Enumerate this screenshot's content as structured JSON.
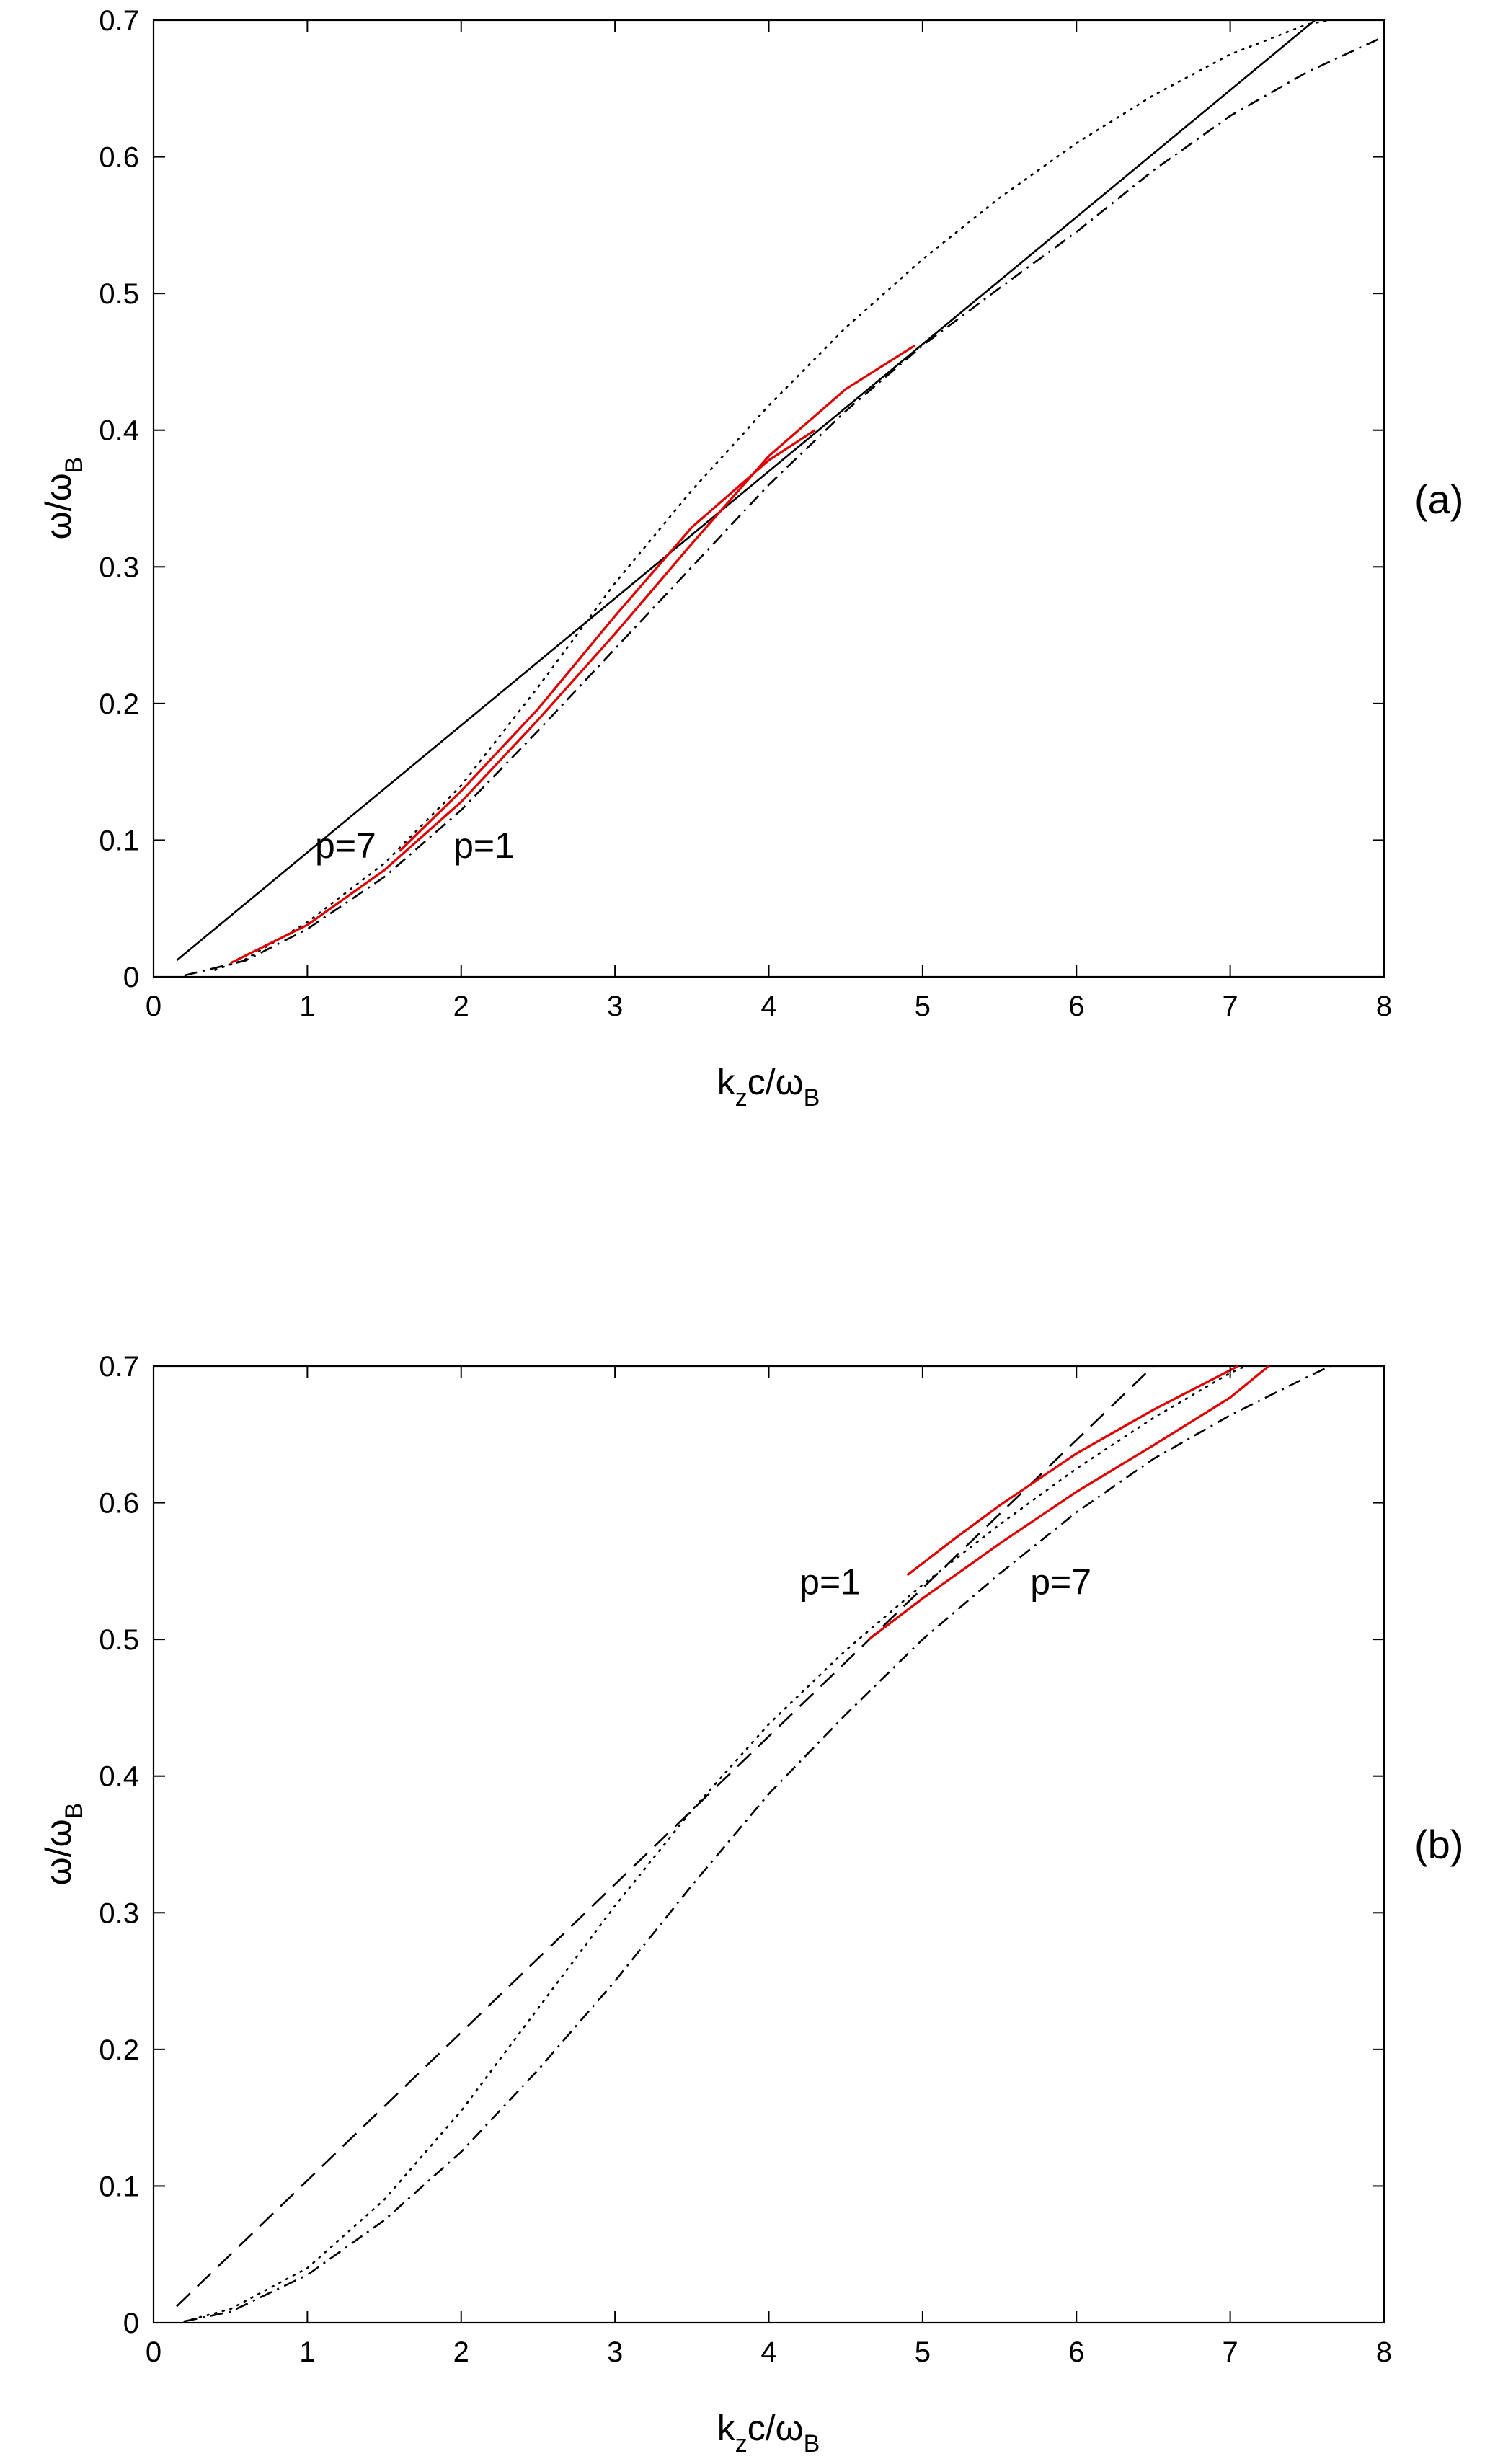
{
  "chart_data": [
    {
      "type": "line",
      "panel": "(a)",
      "xlabel": {
        "base": "k",
        "sub1": "z",
        "mid": "c/ω",
        "sub2": "B"
      },
      "ylabel": {
        "base": "ω/ω",
        "sub": "B"
      },
      "xlim": [
        0,
        8
      ],
      "ylim": [
        0,
        0.7
      ],
      "xticks": [
        "0",
        "1",
        "2",
        "3",
        "4",
        "5",
        "6",
        "7",
        "8"
      ],
      "yticks": [
        "0",
        "0.1",
        "0.2",
        "0.3",
        "0.4",
        "0.5",
        "0.6",
        "0.7"
      ],
      "grid": false,
      "legend": "none",
      "annotations": [
        {
          "text": "p=7",
          "x": 1.05,
          "y": 0.087
        },
        {
          "text": "p=1",
          "x": 1.95,
          "y": 0.087
        }
      ],
      "series": [
        {
          "style": "solid",
          "color": "#000000",
          "x": [
            0.15,
            7.55
          ],
          "y": [
            0.012,
            0.7
          ]
        },
        {
          "style": "dotted",
          "color": "#000000",
          "x": [
            0.4,
            0.6,
            1.0,
            1.5,
            2.0,
            2.5,
            3.0,
            3.5,
            4.0,
            4.5,
            5.0,
            5.5,
            6.0,
            6.5,
            7.0,
            7.5,
            7.65
          ],
          "y": [
            0.005,
            0.013,
            0.04,
            0.083,
            0.14,
            0.212,
            0.288,
            0.356,
            0.418,
            0.475,
            0.525,
            0.57,
            0.61,
            0.645,
            0.675,
            0.697,
            0.7
          ]
        },
        {
          "style": "dashdot",
          "color": "#000000",
          "x": [
            0.2,
            0.6,
            1.0,
            1.5,
            2.0,
            2.5,
            3.0,
            3.5,
            4.0,
            4.5,
            5.0,
            5.5,
            6.0,
            6.5,
            7.0,
            7.5,
            8.0
          ],
          "y": [
            0.001,
            0.012,
            0.035,
            0.073,
            0.122,
            0.18,
            0.24,
            0.3,
            0.36,
            0.414,
            0.462,
            0.504,
            0.545,
            0.59,
            0.63,
            0.662,
            0.688
          ]
        },
        {
          "style": "solid",
          "color": "#e00000",
          "x": [
            0.5,
            1.0,
            1.5,
            2.0,
            2.5,
            3.0,
            3.5,
            4.0,
            4.5,
            4.95
          ],
          "y": [
            0.01,
            0.038,
            0.078,
            0.128,
            0.188,
            0.251,
            0.317,
            0.381,
            0.43,
            0.462
          ]
        },
        {
          "style": "solid",
          "color": "#e00000",
          "x": [
            1.6,
            2.0,
            2.5,
            3.0,
            3.5,
            4.0,
            4.3
          ],
          "y": [
            0.092,
            0.136,
            0.196,
            0.264,
            0.329,
            0.378,
            0.4
          ]
        }
      ]
    },
    {
      "type": "line",
      "panel": "(b)",
      "xlabel": {
        "base": "k",
        "sub1": "z",
        "mid": "c/ω",
        "sub2": "B"
      },
      "ylabel": {
        "base": "ω/ω",
        "sub": "B"
      },
      "xlim": [
        0,
        8
      ],
      "ylim": [
        0,
        0.7
      ],
      "xticks": [
        "0",
        "1",
        "2",
        "3",
        "4",
        "5",
        "6",
        "7",
        "8"
      ],
      "yticks": [
        "0",
        "0.1",
        "0.2",
        "0.3",
        "0.4",
        "0.5",
        "0.6",
        "0.7"
      ],
      "grid": false,
      "legend": "none",
      "annotations": [
        {
          "text": "p=1",
          "x": 4.2,
          "y": 0.533
        },
        {
          "text": "p=7",
          "x": 5.7,
          "y": 0.533
        }
      ],
      "series": [
        {
          "style": "dashed",
          "color": "#000000",
          "x": [
            0.15,
            6.5
          ],
          "y": [
            0.012,
            0.7
          ]
        },
        {
          "style": "dotted",
          "color": "#000000",
          "x": [
            0.2,
            0.5,
            1.0,
            1.5,
            2.0,
            2.5,
            3.0,
            3.5,
            4.0,
            4.5,
            5.0,
            5.5,
            6.0,
            6.5,
            7.0,
            7.1
          ],
          "y": [
            0.001,
            0.01,
            0.04,
            0.09,
            0.155,
            0.23,
            0.305,
            0.375,
            0.438,
            0.492,
            0.54,
            0.584,
            0.625,
            0.662,
            0.695,
            0.7
          ]
        },
        {
          "style": "dashdot",
          "color": "#000000",
          "x": [
            0.2,
            0.5,
            1.0,
            1.5,
            2.0,
            2.5,
            3.0,
            3.5,
            4.0,
            4.5,
            5.0,
            5.5,
            6.0,
            6.5,
            7.0,
            7.5,
            7.65
          ],
          "y": [
            0.001,
            0.008,
            0.035,
            0.075,
            0.125,
            0.185,
            0.25,
            0.32,
            0.387,
            0.445,
            0.5,
            0.548,
            0.593,
            0.632,
            0.664,
            0.692,
            0.7
          ]
        },
        {
          "style": "solid",
          "color": "#e00000",
          "x": [
            4.65,
            5.0,
            5.5,
            6.0,
            6.5,
            7.0,
            7.25
          ],
          "y": [
            0.5,
            0.53,
            0.57,
            0.608,
            0.642,
            0.677,
            0.7
          ]
        },
        {
          "style": "solid",
          "color": "#e00000",
          "x": [
            4.9,
            5.2,
            5.5,
            6.0,
            6.5,
            7.0,
            7.05
          ],
          "y": [
            0.547,
            0.573,
            0.598,
            0.636,
            0.668,
            0.697,
            0.7
          ]
        }
      ]
    }
  ]
}
